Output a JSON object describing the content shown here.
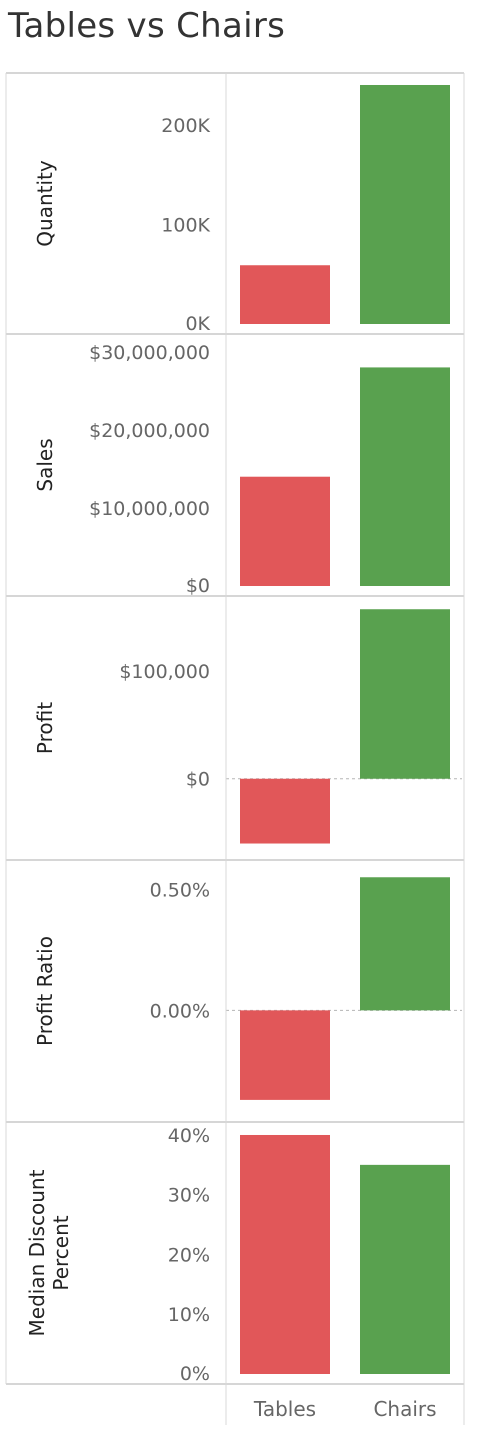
{
  "chart_title": "Tables vs Chairs",
  "chart_data": {
    "type": "bar",
    "title": "Tables vs Chairs",
    "categories": [
      "Tables",
      "Chairs"
    ],
    "colors": {
      "Tables": "#e15759",
      "Chairs": "#59a14f"
    },
    "grid": false,
    "legend": "none",
    "panels": [
      {
        "name": "quantity",
        "ylabel": [
          "Quantity"
        ],
        "ylim": [
          0,
          242000
        ],
        "ticks": [
          {
            "v": 0,
            "label": "0K"
          },
          {
            "v": 100000,
            "label": "100K"
          },
          {
            "v": 200000,
            "label": "200K"
          }
        ],
        "values": [
          59000,
          240000
        ]
      },
      {
        "name": "sales",
        "ylabel": [
          "Sales"
        ],
        "ylim": [
          0,
          31000000
        ],
        "ticks": [
          {
            "v": 0,
            "label": "$0"
          },
          {
            "v": 10000000,
            "label": "$10,000,000"
          },
          {
            "v": 20000000,
            "label": "$20,000,000"
          },
          {
            "v": 30000000,
            "label": "$30,000,000"
          }
        ],
        "values": [
          14000000,
          28000000
        ]
      },
      {
        "name": "profit",
        "ylabel": [
          "Profit"
        ],
        "ylim": [
          -66000,
          160000
        ],
        "zero_line": true,
        "ticks": [
          {
            "v": 0,
            "label": "$0"
          },
          {
            "v": 100000,
            "label": "$100,000"
          }
        ],
        "values": [
          -60000,
          157000
        ]
      },
      {
        "name": "profit-ratio",
        "ylabel": [
          "Profit Ratio"
        ],
        "ylim": [
          -0.0042,
          0.0058
        ],
        "zero_line": true,
        "ticks": [
          {
            "v": 0,
            "label": "0.00%"
          },
          {
            "v": 0.005,
            "label": "0.50%"
          }
        ],
        "values": [
          -0.0037,
          0.0055
        ]
      },
      {
        "name": "median-discount-percent",
        "ylabel": [
          "Median Discount",
          "Percent"
        ],
        "ylim": [
          0,
          0.405
        ],
        "ticks": [
          {
            "v": 0,
            "label": "0%"
          },
          {
            "v": 0.1,
            "label": "10%"
          },
          {
            "v": 0.2,
            "label": "20%"
          },
          {
            "v": 0.3,
            "label": "30%"
          },
          {
            "v": 0.4,
            "label": "40%"
          }
        ],
        "values": [
          0.4,
          0.35
        ]
      }
    ]
  }
}
